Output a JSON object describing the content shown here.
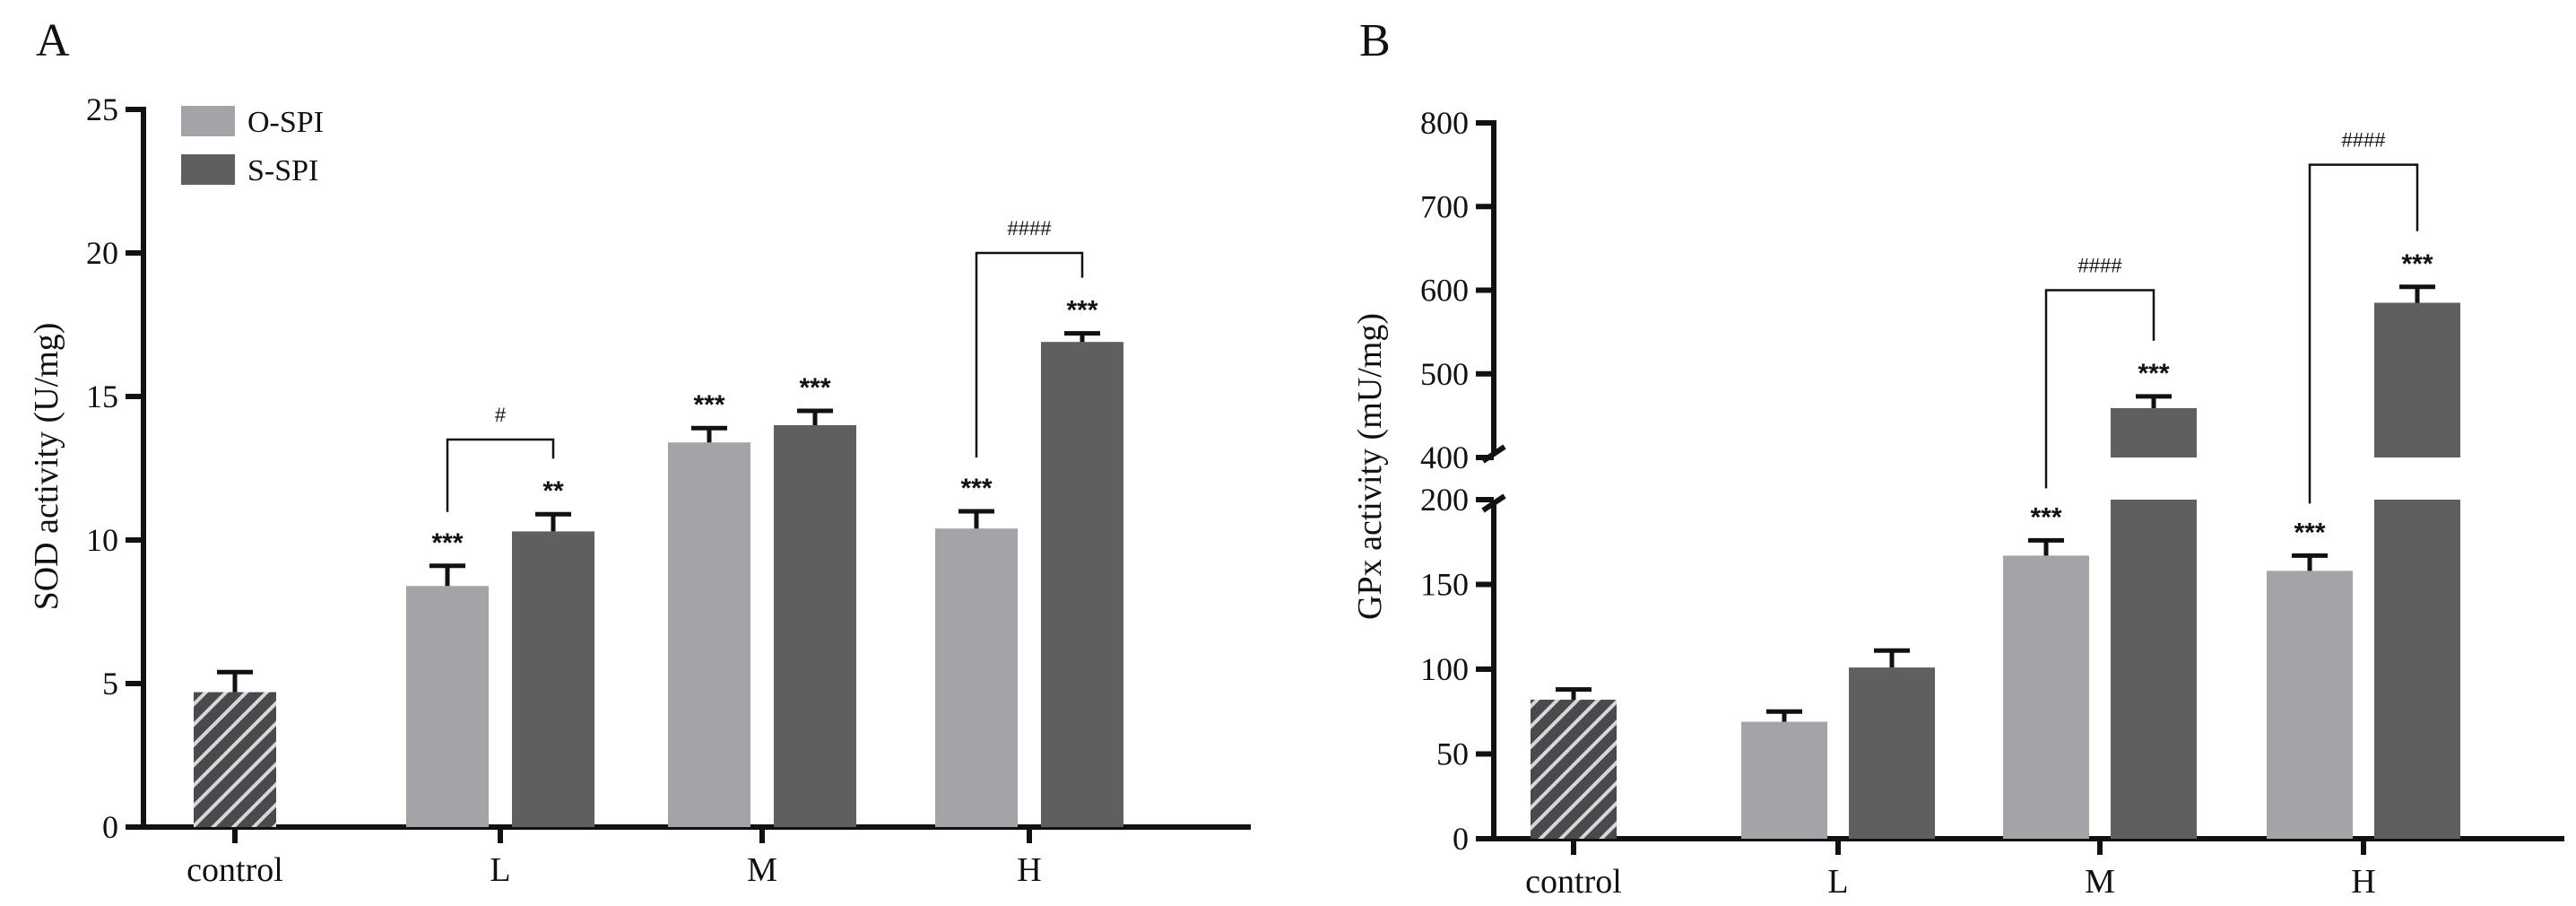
{
  "colors": {
    "O-SPI": "#a4a4a8",
    "S-SPI": "#5f5f61",
    "control": "#4a4a4e",
    "control_hatch": "#d8d8d8"
  },
  "chart_data": [
    {
      "panel": "A",
      "type": "bar",
      "ylabel": "SOD activity (U/mg)",
      "ylim": [
        0,
        25
      ],
      "yticks": [
        0,
        5,
        10,
        15,
        20,
        25
      ],
      "categories": [
        "control",
        "L",
        "M",
        "H"
      ],
      "control": {
        "value": 4.7,
        "error": 0.7
      },
      "series": [
        {
          "name": "O-SPI",
          "values": [
            null,
            8.4,
            13.4,
            10.4
          ],
          "errors": [
            null,
            0.7,
            0.5,
            0.6
          ],
          "sig": [
            "",
            "***",
            "***",
            "***"
          ]
        },
        {
          "name": "S-SPI",
          "values": [
            null,
            10.3,
            14.0,
            16.9
          ],
          "errors": [
            null,
            0.6,
            0.5,
            0.3
          ],
          "sig": [
            "",
            "**",
            "***",
            "***"
          ]
        }
      ],
      "brackets": [
        {
          "category": "L",
          "label": "#"
        },
        {
          "category": "H",
          "label": "####"
        }
      ],
      "legend": {
        "position": "top-left",
        "entries": [
          "O-SPI",
          "S-SPI"
        ]
      }
    },
    {
      "panel": "B",
      "type": "bar",
      "ylabel": "GPx activity (mU/mg)",
      "ylim": [
        0,
        800
      ],
      "axis_break": [
        200,
        400
      ],
      "yticks": [
        0,
        50,
        100,
        150,
        200,
        400,
        500,
        600,
        700,
        800
      ],
      "categories": [
        "control",
        "L",
        "M",
        "H"
      ],
      "control": {
        "value": 82,
        "error": 6
      },
      "series": [
        {
          "name": "O-SPI",
          "values": [
            null,
            69,
            167,
            158
          ],
          "errors": [
            null,
            6,
            9,
            9
          ],
          "sig": [
            "",
            "",
            "***",
            "***"
          ]
        },
        {
          "name": "S-SPI",
          "values": [
            null,
            101,
            459,
            585
          ],
          "errors": [
            null,
            10,
            14,
            19
          ],
          "sig": [
            "",
            "",
            "***",
            "***"
          ]
        }
      ],
      "brackets": [
        {
          "category": "M",
          "label": "####"
        },
        {
          "category": "H",
          "label": "####"
        }
      ]
    }
  ]
}
